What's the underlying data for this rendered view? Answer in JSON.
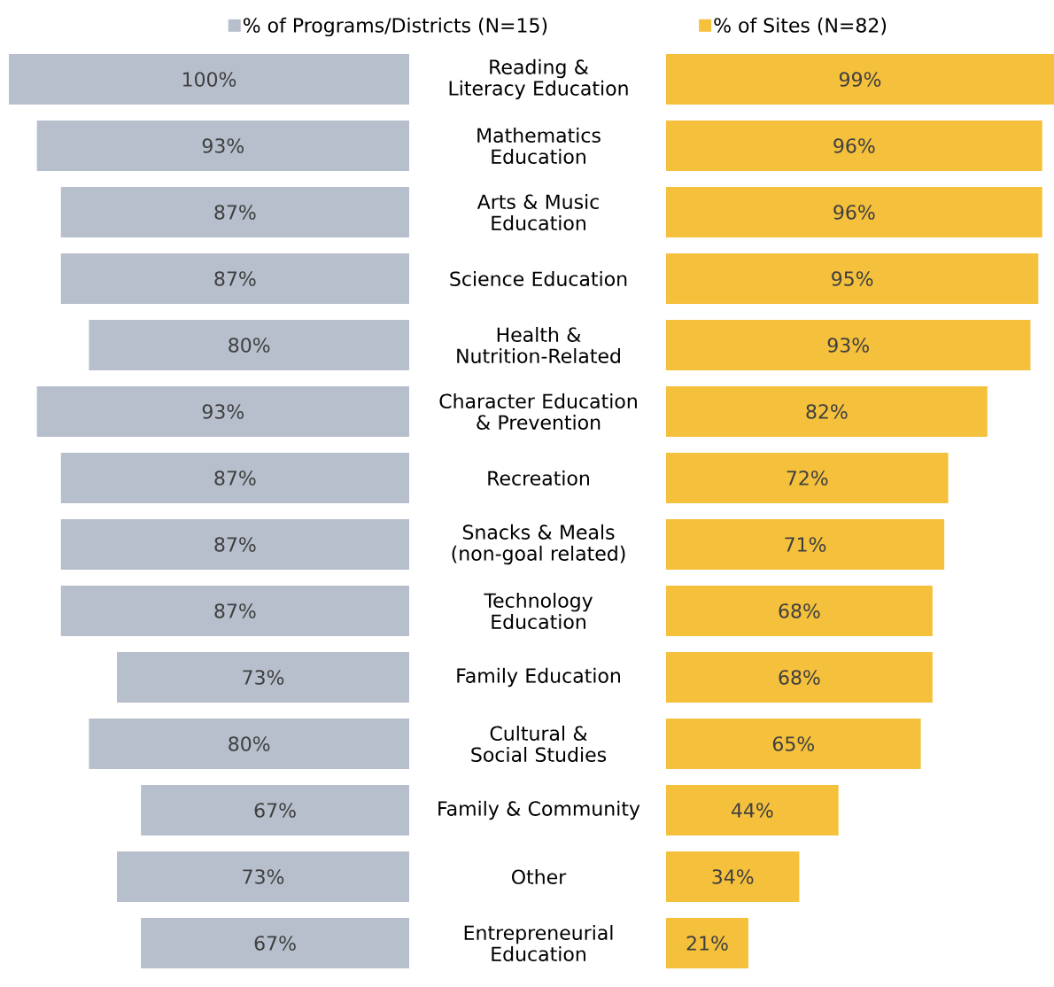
{
  "chart_data": [
    {
      "type": "bar",
      "orientation": "horizontal",
      "categories": [
        "Reading & Literacy Education",
        "Mathematics Education",
        "Arts & Music Education",
        "Science Education",
        "Health & Nutrition-Related",
        "Character Education & Prevention",
        "Recreation",
        "Snacks & Meals (non-goal related)",
        "Technology Education",
        "Family Education",
        "Cultural & Social Studies",
        "Family & Community",
        "Other",
        "Entrepreneurial Education"
      ],
      "xlim": [
        100,
        0
      ],
      "tick_labels": "y",
      "legend": "top",
      "data_labels": true,
      "series": [
        {
          "name": "% of Programs/Districts (N=15)",
          "color": "#b7bfcd",
          "values": [
            100,
            93,
            87,
            87,
            80,
            93,
            87,
            87,
            87,
            73,
            80,
            67,
            73,
            67
          ],
          "value_labels": [
            "100%",
            "93%",
            "87%",
            "87%",
            "80%",
            "93%",
            "87%",
            "87%",
            "87%",
            "73%",
            "80%",
            "67%",
            "73%",
            "67%"
          ]
        }
      ]
    },
    {
      "type": "bar",
      "orientation": "horizontal",
      "categories": [
        null,
        null,
        null,
        null,
        null,
        null,
        null,
        null,
        null,
        null,
        null,
        null,
        null,
        null
      ],
      "tick_labels": false,
      "legend": "top",
      "data_labels": true,
      "series": [
        {
          "name": "% of Sites (N=82)",
          "color": "#f5c03c",
          "values": [
            99,
            96,
            96,
            95,
            93,
            82,
            72,
            71,
            68,
            68,
            65,
            44,
            34,
            21
          ],
          "value_labels": [
            "99%",
            "96%",
            "96%",
            "95%",
            "93%",
            "82%",
            "72%",
            "71%",
            "68%",
            "68%",
            "65%",
            "44%",
            "34%",
            "21%"
          ]
        }
      ]
    }
  ]
}
